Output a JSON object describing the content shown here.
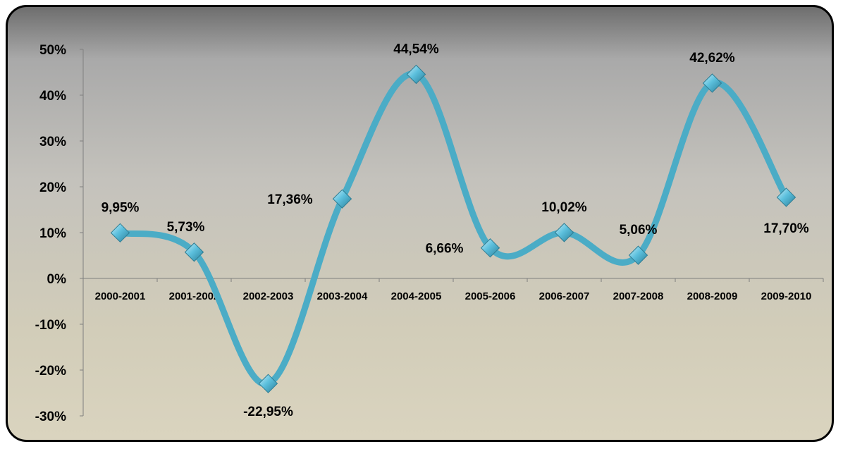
{
  "chart_data": {
    "type": "line",
    "categories": [
      "2000-2001",
      "2001-2002",
      "2002-2003",
      "2003-2004",
      "2004-2005",
      "2005-2006",
      "2006-2007",
      "2007-2008",
      "2008-2009",
      "2009-2010"
    ],
    "series": [
      {
        "values": [
          9.95,
          5.73,
          -22.95,
          17.36,
          44.54,
          6.66,
          10.02,
          5.06,
          42.62,
          17.7
        ]
      }
    ],
    "data_labels": [
      "9,95%",
      "5,73%",
      "-22,95%",
      "17,36%",
      "44,54%",
      "6,66%",
      "10,02%",
      "5,06%",
      "42,62%",
      "17,70%"
    ],
    "y_ticks": [
      50,
      40,
      30,
      20,
      10,
      0,
      -10,
      -20,
      -30
    ],
    "y_tick_labels": [
      "50%",
      "40%",
      "30%",
      "20%",
      "10%",
      "0%",
      "-10%",
      "-20%",
      "-30%"
    ],
    "ylim": [
      -30,
      50
    ],
    "grid": false,
    "legend": "none",
    "smooth": true,
    "line_color": "#4bacc6",
    "marker": "diamond",
    "marker_color": "#4bacc6"
  }
}
